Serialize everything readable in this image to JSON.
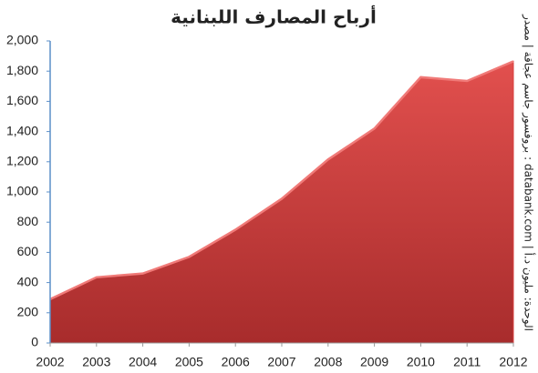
{
  "chart_data": {
    "type": "area",
    "title": "أرباح المصارف اللبنانية",
    "source_note": "بروفسور جاسم عجاقة | مصدر : databank.com | الوحدة: مليون د.أ",
    "x": [
      2002,
      2003,
      2004,
      2005,
      2006,
      2007,
      2008,
      2009,
      2010,
      2011,
      2012
    ],
    "values": [
      290,
      435,
      460,
      570,
      750,
      955,
      1215,
      1420,
      1760,
      1735,
      1865
    ],
    "color": "#d9403f",
    "xlim": [
      2002,
      2012
    ],
    "xticks": [
      2002,
      2003,
      2004,
      2005,
      2006,
      2007,
      2008,
      2009,
      2010,
      2011,
      2012
    ],
    "ylim": [
      0,
      2000
    ],
    "yticks": [
      0,
      200,
      400,
      600,
      800,
      {
        "value": 1000,
        "label": "1,000"
      },
      {
        "value": 1200,
        "label": "1,200"
      },
      {
        "value": 1400,
        "label": "1,400"
      },
      {
        "value": 1600,
        "label": "1,600"
      },
      {
        "value": 1800,
        "label": "1,800"
      },
      {
        "value": 2000,
        "label": "2,000"
      }
    ],
    "grid": false
  }
}
